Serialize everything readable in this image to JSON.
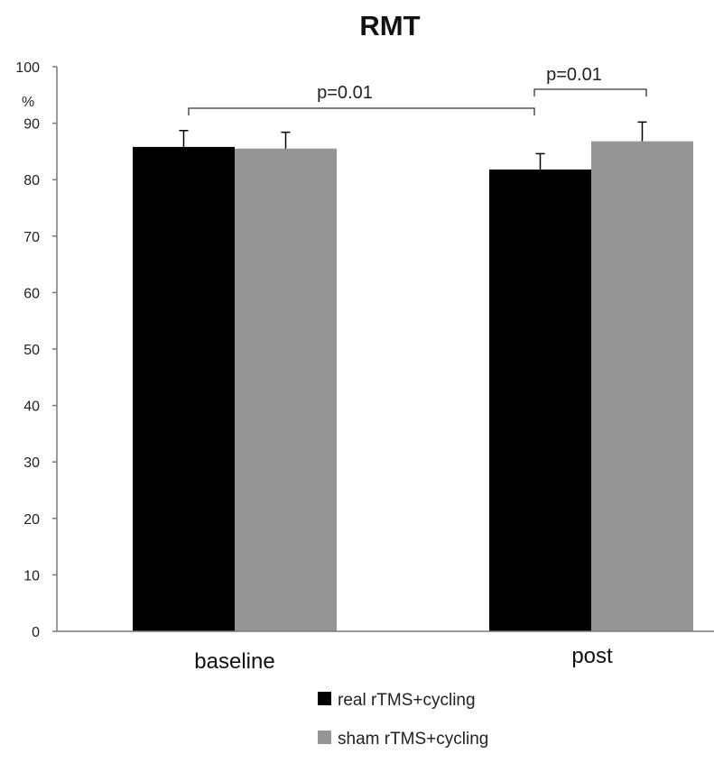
{
  "chart_data": {
    "type": "bar",
    "title": "RMT",
    "y_unit": "%",
    "ylim": [
      0,
      100
    ],
    "y_ticks": [
      0,
      10,
      20,
      30,
      40,
      50,
      60,
      70,
      80,
      90,
      100
    ],
    "categories": [
      "baseline",
      "post"
    ],
    "series": [
      {
        "name": "real rTMS+cycling",
        "color": "#000000",
        "values": [
          85.8,
          81.8
        ],
        "errors": [
          2.9,
          2.8
        ]
      },
      {
        "name": "sham rTMS+cycling",
        "color": "#959595",
        "values": [
          85.5,
          86.8
        ],
        "errors": [
          2.9,
          3.4
        ]
      }
    ],
    "annotations": [
      {
        "text": "p=0.01",
        "from": {
          "category": 0,
          "series": 0
        },
        "to": {
          "category": 1,
          "series": 0
        }
      },
      {
        "text": "p=0.01",
        "from": {
          "category": 1,
          "series": 0
        },
        "to": {
          "category": 1,
          "series": 1
        }
      }
    ],
    "legend_position": "bottom-center",
    "grid": false
  }
}
